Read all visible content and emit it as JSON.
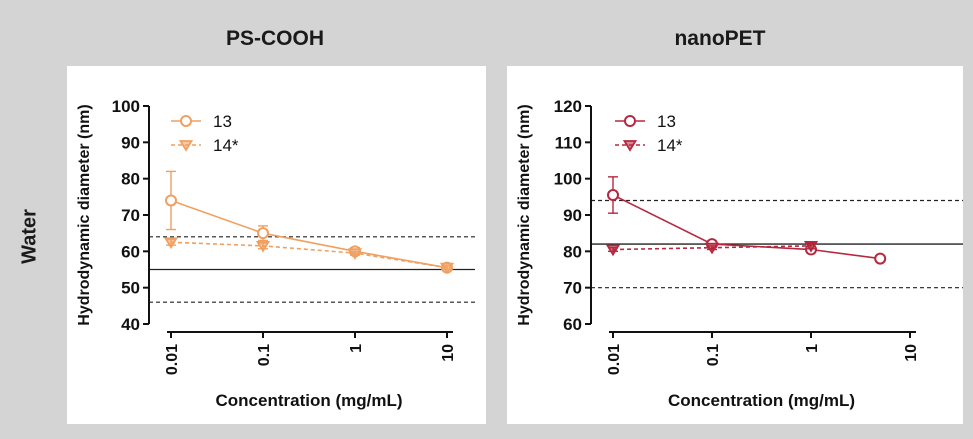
{
  "row_label": "Water",
  "chart_data": [
    {
      "type": "line",
      "title": "PS-COOH",
      "xlabel": "Concentration (mg/mL)",
      "ylabel": "Hydrodynamic diameter (nm)",
      "x_scale": "log",
      "xlim": [
        0.01,
        10
      ],
      "ylim": [
        40,
        100
      ],
      "x_ticks": [
        "0.01",
        "0.1",
        "1",
        "10"
      ],
      "y_ticks": [
        40,
        50,
        60,
        70,
        80,
        90,
        100
      ],
      "legend_position": "top-left",
      "reference_lines": {
        "solid": 55,
        "dashed": [
          46,
          64
        ]
      },
      "series": [
        {
          "name": "13",
          "marker": "circle",
          "line": "solid",
          "color": "#f0a060",
          "x": [
            0.01,
            0.1,
            1,
            10
          ],
          "y": [
            74,
            65,
            60,
            55.5
          ],
          "err": [
            8,
            2,
            1,
            0.8
          ]
        },
        {
          "name": "14*",
          "marker": "triangle-down",
          "line": "dashed",
          "color": "#f0a060",
          "x": [
            0.01,
            0.1,
            1,
            10
          ],
          "y": [
            62.5,
            61.5,
            59.5,
            55.5
          ],
          "err": [
            0.8,
            0.8,
            0.5,
            0.5
          ]
        }
      ]
    },
    {
      "type": "line",
      "title": "nanoPET",
      "xlabel": "Concentration (mg/mL)",
      "ylabel": "Hydrodynamic diameter (nm)",
      "x_scale": "log",
      "xlim": [
        0.01,
        10
      ],
      "ylim": [
        60,
        120
      ],
      "x_ticks": [
        "0.01",
        "0.1",
        "1",
        "10"
      ],
      "y_ticks": [
        60,
        70,
        80,
        90,
        100,
        110,
        120
      ],
      "legend_position": "top-left",
      "reference_lines": {
        "solid": 82,
        "dashed": [
          70,
          94
        ]
      },
      "series": [
        {
          "name": "13",
          "marker": "circle",
          "line": "solid",
          "color": "#b5283f",
          "x": [
            0.01,
            0.1,
            1,
            5
          ],
          "y": [
            95.5,
            82,
            80.5,
            78
          ],
          "err": [
            5,
            0.8,
            0.8,
            0.5
          ]
        },
        {
          "name": "14*",
          "marker": "triangle-down",
          "line": "dashed",
          "color": "#b5283f",
          "x": [
            0.01,
            0.1,
            1
          ],
          "y": [
            80.5,
            81,
            81.5
          ],
          "err": [
            0.5,
            0.5,
            0.8
          ]
        }
      ]
    }
  ]
}
